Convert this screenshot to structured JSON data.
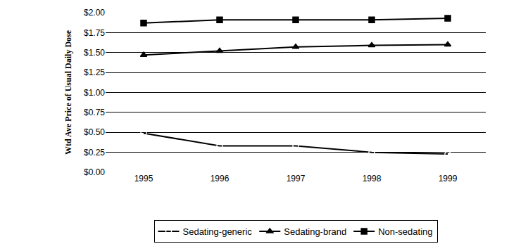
{
  "chart_data": {
    "type": "line",
    "y_label": "Wtd Ave Price of Usual Daily Dose",
    "categories": [
      "1995",
      "1996",
      "1997",
      "1998",
      "1999"
    ],
    "series": [
      {
        "name": "Sedating-generic",
        "color": "#000000",
        "marker": "circle-open",
        "values": [
          0.49,
          0.33,
          0.33,
          0.25,
          0.23
        ]
      },
      {
        "name": "Sedating-brand",
        "color": "#000000",
        "marker": "triangle-up",
        "values": [
          1.47,
          1.52,
          1.57,
          1.59,
          1.6
        ]
      },
      {
        "name": "Non-sedating",
        "color": "#000000",
        "marker": "square",
        "values": [
          1.87,
          1.91,
          1.91,
          1.91,
          1.93
        ]
      }
    ],
    "ylim": [
      0,
      2
    ],
    "yticks": [
      {
        "value": 0,
        "label": "$0.00"
      },
      {
        "value": 0.25,
        "label": "$0.25"
      },
      {
        "value": 0.5,
        "label": "$0.50"
      },
      {
        "value": 0.75,
        "label": "$0.75"
      },
      {
        "value": 1,
        "label": "$1.00"
      },
      {
        "value": 1.25,
        "label": "$1.25"
      },
      {
        "value": 1.5,
        "label": "$1.50"
      },
      {
        "value": 1.75,
        "label": "$1.75"
      },
      {
        "value": 2,
        "label": "$2.00"
      }
    ],
    "grid": true,
    "legend": "bottom"
  }
}
